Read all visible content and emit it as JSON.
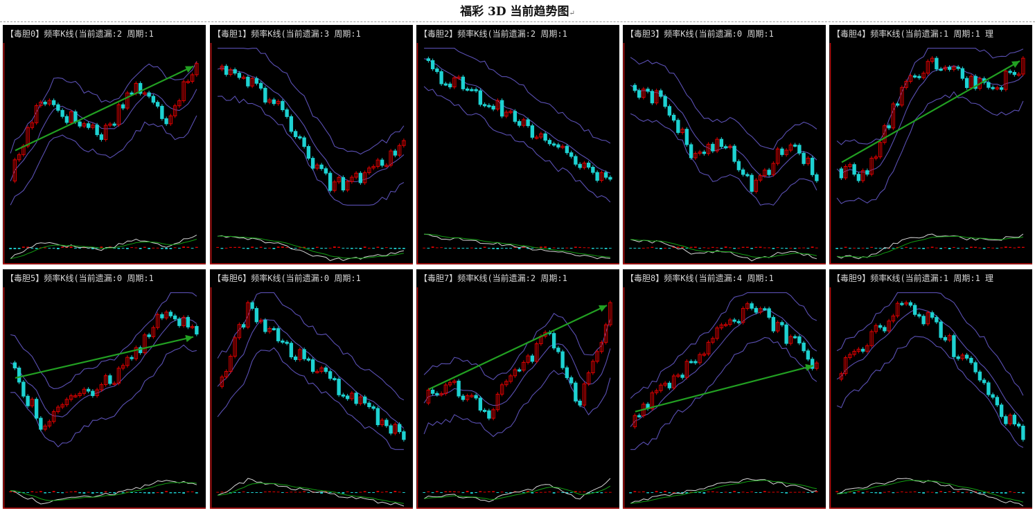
{
  "page": {
    "title": "福彩 3D 当前趋势图",
    "mark": "↵"
  },
  "colors": {
    "bg": "#000000",
    "up": "#e00000",
    "down": "#1ed2d2",
    "band": "#5b50b4",
    "macd": "#d8d8d8",
    "signal": "#12a012",
    "arrow": "#22a022",
    "axis": "#c81414"
  },
  "chart_data": [
    {
      "type": "candlestick",
      "title": "【毒胆0】频率K线(当前遗漏:2 周期:1",
      "trend": [
        0.15,
        0.72,
        0.55,
        0.45,
        0.8,
        0.55,
        0.97
      ],
      "arrow": "up"
    },
    {
      "type": "candlestick",
      "title": "【毒胆1】频率K线(当前遗漏:3 周期:1",
      "trend": [
        0.95,
        0.82,
        0.5,
        0.08,
        0.15,
        0.35
      ],
      "arrow": ""
    },
    {
      "type": "candlestick",
      "title": "【毒胆2】频率K线(当前遗漏:2 周期:1",
      "trend": [
        0.92,
        0.78,
        0.65,
        0.45,
        0.25,
        0.12
      ],
      "arrow": ""
    },
    {
      "type": "candlestick",
      "title": "【毒胆3】频率K线(当前遗漏:0 周期:1",
      "trend": [
        0.75,
        0.7,
        0.3,
        0.38,
        0.05,
        0.4,
        0.15
      ],
      "arrow": ""
    },
    {
      "type": "candlestick",
      "title": "【毒胆4】频率K线(当前遗漏:1 周期:1 理",
      "trend": [
        0.18,
        0.18,
        0.7,
        0.98,
        0.85,
        0.75,
        0.95
      ],
      "arrow": "up"
    },
    {
      "type": "candlestick",
      "title": "【毒胆5】频率K线(当前遗漏:0 周期:1",
      "trend": [
        0.55,
        0.12,
        0.35,
        0.4,
        0.6,
        0.95,
        0.75
      ],
      "arrow": "up"
    },
    {
      "type": "candlestick",
      "title": "【毒胆6】频率K线(当前遗漏:0 周期:1",
      "trend": [
        0.4,
        0.95,
        0.7,
        0.55,
        0.35,
        0.2,
        0.05
      ],
      "arrow": ""
    },
    {
      "type": "candlestick",
      "title": "【毒胆7】频率K线(当前遗漏:2 周期:1",
      "trend": [
        0.3,
        0.4,
        0.2,
        0.5,
        0.75,
        0.25,
        0.95
      ],
      "arrow": "up"
    },
    {
      "type": "candlestick",
      "title": "【毒胆8】频率K线(当前遗漏:4 周期:1",
      "trend": [
        0.15,
        0.4,
        0.55,
        0.8,
        0.95,
        0.75,
        0.55
      ],
      "arrow": "up"
    },
    {
      "type": "candlestick",
      "title": "【毒胆9】频率K线(当前遗漏:1 周期:1 理",
      "trend": [
        0.5,
        0.7,
        0.95,
        0.85,
        0.6,
        0.3,
        0.05
      ],
      "arrow": ""
    }
  ]
}
